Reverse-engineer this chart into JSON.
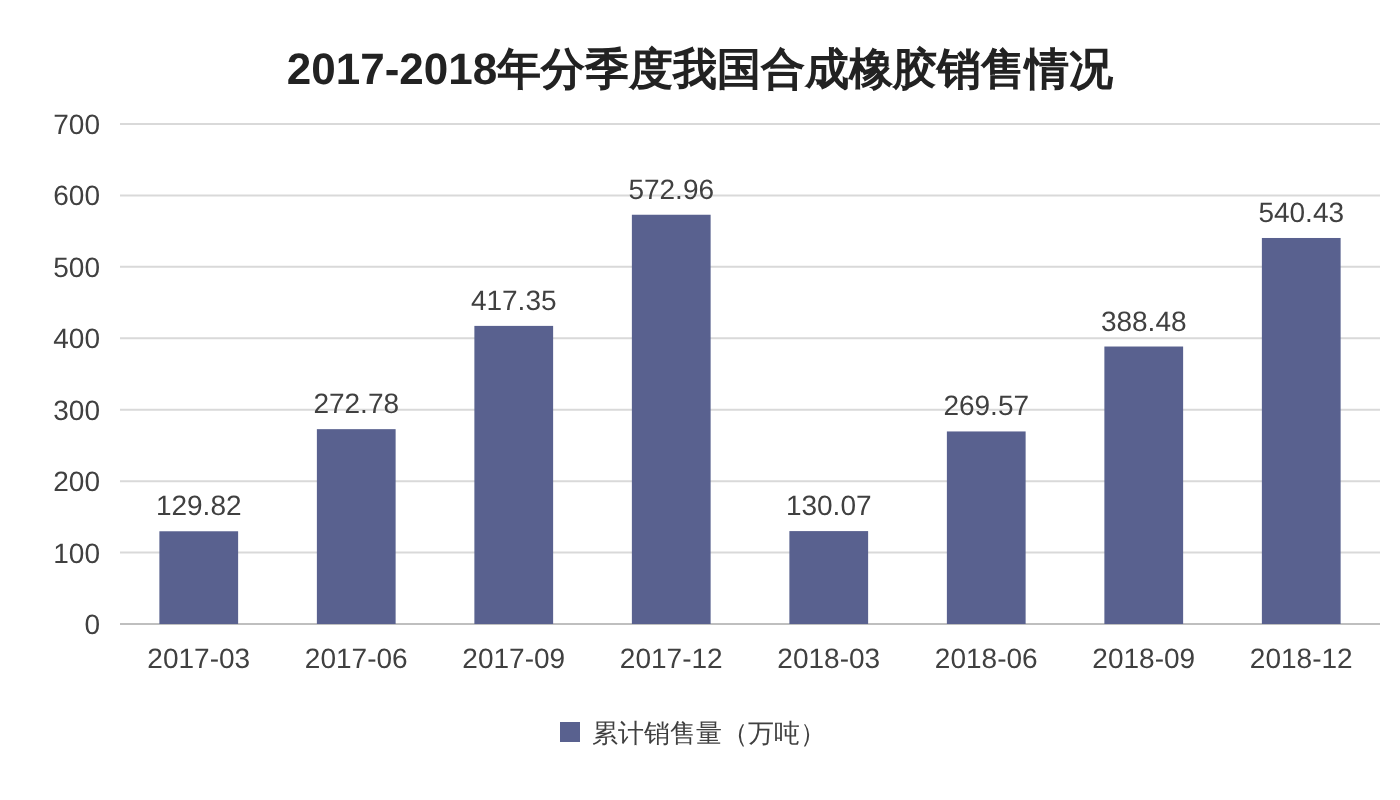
{
  "chart_data": {
    "type": "bar",
    "title": "2017-2018年分季度我国合成橡胶销售情况",
    "categories": [
      "2017-03",
      "2017-06",
      "2017-09",
      "2017-12",
      "2018-03",
      "2018-06",
      "2018-09",
      "2018-12"
    ],
    "series": [
      {
        "name": "累计销售量（万吨）",
        "color": "#59618f",
        "values": [
          129.82,
          272.78,
          417.35,
          572.96,
          130.07,
          269.57,
          388.48,
          540.43
        ]
      }
    ],
    "ylim": [
      0,
      700
    ],
    "yticks": [
      0,
      100,
      200,
      300,
      400,
      500,
      600,
      700
    ],
    "grid": "y",
    "data_labels": true,
    "legend": "bottom"
  }
}
